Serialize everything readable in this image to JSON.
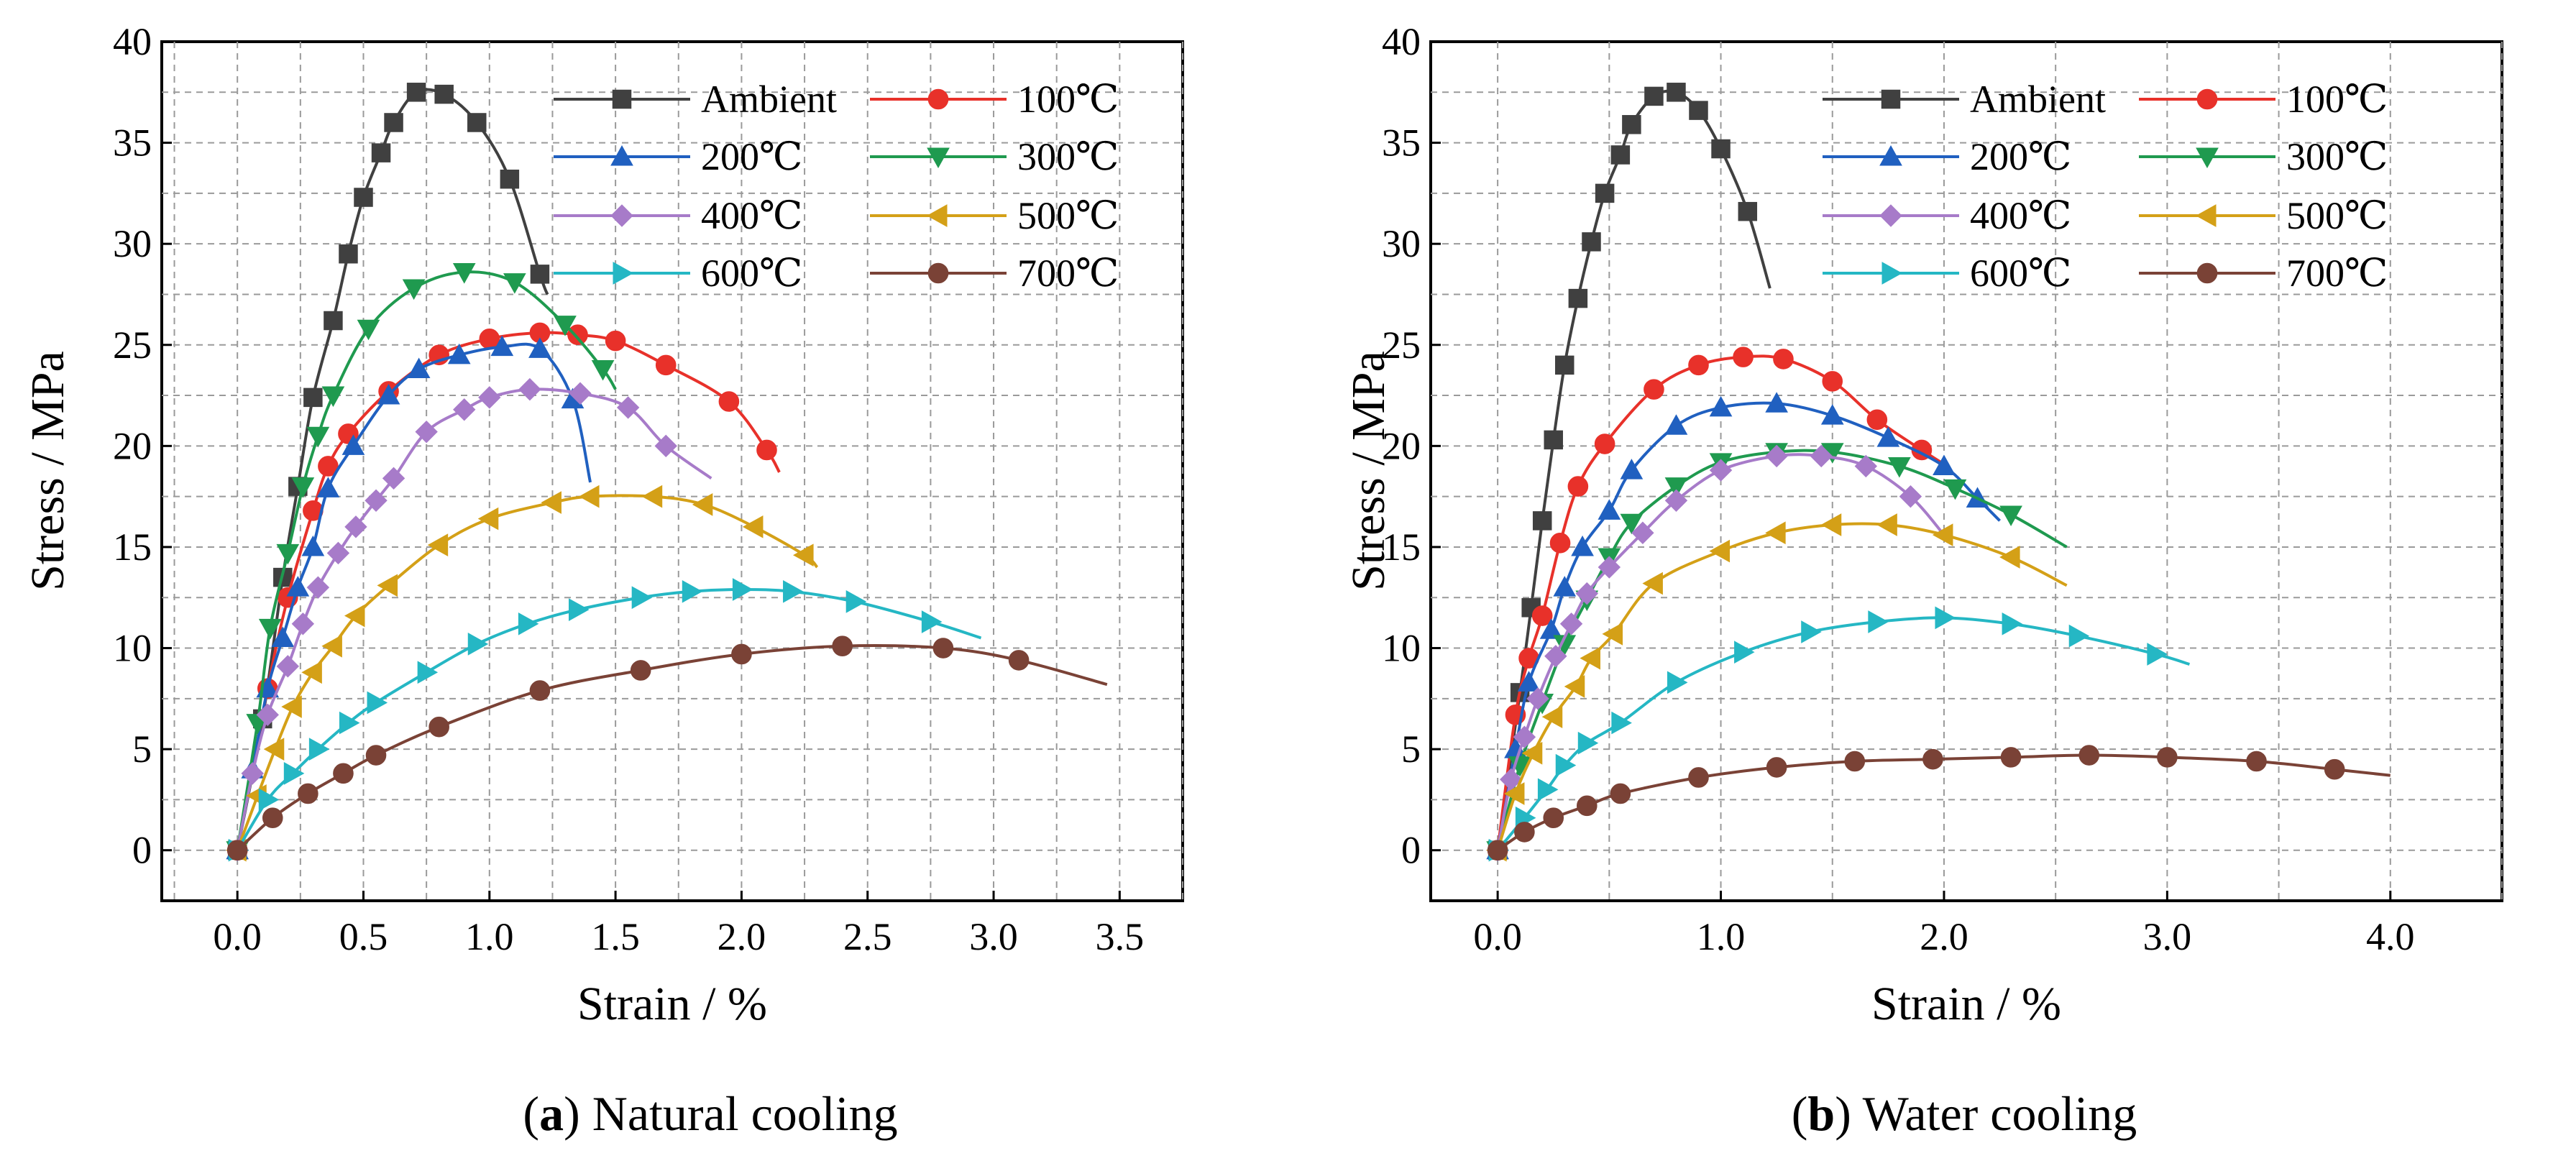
{
  "colors": {
    "Ambient": "#404040",
    "100℃": "#e8312a",
    "200℃": "#2060c0",
    "300℃": "#1f9a4f",
    "400℃": "#a77bc9",
    "500℃": "#d4a017",
    "600℃": "#25b7c4",
    "700℃": "#7a4236"
  },
  "markers": {
    "Ambient": "square",
    "100℃": "circle",
    "200℃": "triangle-up",
    "300℃": "triangle-down",
    "400℃": "diamond",
    "500℃": "triangle-left",
    "600℃": "triangle-right",
    "700℃": "circle"
  },
  "chart_data": [
    {
      "type": "line",
      "caption_letter": "a",
      "caption_text": "Natural cooling",
      "xlabel": "Strain / %",
      "ylabel": "Stress / MPa",
      "xlim": [
        -0.3,
        3.75
      ],
      "ylim": [
        -2.5,
        40
      ],
      "xticks": [
        "0.0",
        "0.5",
        "1.0",
        "1.5",
        "2.0",
        "2.5",
        "3.0",
        "3.5"
      ],
      "yticks": [
        "0",
        "5",
        "10",
        "15",
        "20",
        "25",
        "30",
        "35",
        "40"
      ],
      "legend_position": "top-right",
      "series": [
        {
          "name": "Ambient",
          "points": [
            [
              0,
              0
            ],
            [
              0.1,
              6.5
            ],
            [
              0.18,
              13.5
            ],
            [
              0.24,
              18
            ],
            [
              0.3,
              22.4
            ],
            [
              0.38,
              26.2
            ],
            [
              0.44,
              29.5
            ],
            [
              0.5,
              32.3
            ],
            [
              0.57,
              34.5
            ],
            [
              0.62,
              36
            ],
            [
              0.71,
              37.5
            ],
            [
              0.82,
              37.4
            ],
            [
              0.95,
              36
            ],
            [
              1.08,
              33.2
            ],
            [
              1.2,
              28.5
            ],
            [
              1.23,
              27.5
            ]
          ]
        },
        {
          "name": "100℃",
          "points": [
            [
              0,
              0
            ],
            [
              0.12,
              8
            ],
            [
              0.2,
              12.5
            ],
            [
              0.3,
              16.8
            ],
            [
              0.36,
              19
            ],
            [
              0.44,
              20.6
            ],
            [
              0.6,
              22.7
            ],
            [
              0.8,
              24.5
            ],
            [
              1.0,
              25.3
            ],
            [
              1.2,
              25.6
            ],
            [
              1.35,
              25.5
            ],
            [
              1.5,
              25.2
            ],
            [
              1.7,
              24
            ],
            [
              1.95,
              22.2
            ],
            [
              2.1,
              19.8
            ],
            [
              2.15,
              18.7
            ]
          ]
        },
        {
          "name": "200℃",
          "points": [
            [
              0,
              0
            ],
            [
              0.06,
              4
            ],
            [
              0.12,
              8
            ],
            [
              0.18,
              10.5
            ],
            [
              0.24,
              13
            ],
            [
              0.3,
              15
            ],
            [
              0.36,
              17.9
            ],
            [
              0.46,
              20
            ],
            [
              0.6,
              22.5
            ],
            [
              0.72,
              23.8
            ],
            [
              0.88,
              24.5
            ],
            [
              1.05,
              24.9
            ],
            [
              1.2,
              24.8
            ],
            [
              1.33,
              22.3
            ],
            [
              1.4,
              18.2
            ]
          ]
        },
        {
          "name": "300℃",
          "points": [
            [
              0,
              0
            ],
            [
              0.08,
              6.3
            ],
            [
              0.13,
              11
            ],
            [
              0.2,
              14.7
            ],
            [
              0.26,
              18
            ],
            [
              0.32,
              20.5
            ],
            [
              0.38,
              22.5
            ],
            [
              0.52,
              25.8
            ],
            [
              0.7,
              27.8
            ],
            [
              0.9,
              28.6
            ],
            [
              1.1,
              28.1
            ],
            [
              1.3,
              26
            ],
            [
              1.45,
              23.8
            ],
            [
              1.5,
              22.8
            ]
          ]
        },
        {
          "name": "400℃",
          "points": [
            [
              0,
              0
            ],
            [
              0.06,
              3.8
            ],
            [
              0.12,
              6.7
            ],
            [
              0.2,
              9.1
            ],
            [
              0.26,
              11.2
            ],
            [
              0.32,
              13
            ],
            [
              0.4,
              14.7
            ],
            [
              0.47,
              16
            ],
            [
              0.55,
              17.3
            ],
            [
              0.62,
              18.4
            ],
            [
              0.75,
              20.7
            ],
            [
              0.9,
              21.8
            ],
            [
              1.0,
              22.4
            ],
            [
              1.16,
              22.8
            ],
            [
              1.36,
              22.6
            ],
            [
              1.55,
              21.9
            ],
            [
              1.7,
              20
            ],
            [
              1.88,
              18.4
            ]
          ]
        },
        {
          "name": "500℃",
          "points": [
            [
              0,
              0
            ],
            [
              0.08,
              2.7
            ],
            [
              0.15,
              5
            ],
            [
              0.22,
              7.1
            ],
            [
              0.3,
              8.8
            ],
            [
              0.38,
              10.1
            ],
            [
              0.47,
              11.6
            ],
            [
              0.6,
              13.1
            ],
            [
              0.8,
              15.1
            ],
            [
              1.0,
              16.4
            ],
            [
              1.25,
              17.2
            ],
            [
              1.4,
              17.5
            ],
            [
              1.65,
              17.5
            ],
            [
              1.85,
              17.1
            ],
            [
              2.05,
              16
            ],
            [
              2.25,
              14.6
            ],
            [
              2.3,
              14
            ]
          ]
        },
        {
          "name": "600℃",
          "points": [
            [
              0,
              0
            ],
            [
              0.12,
              2.5
            ],
            [
              0.22,
              3.8
            ],
            [
              0.32,
              5
            ],
            [
              0.44,
              6.3
            ],
            [
              0.55,
              7.3
            ],
            [
              0.75,
              8.8
            ],
            [
              0.95,
              10.2
            ],
            [
              1.15,
              11.2
            ],
            [
              1.35,
              11.9
            ],
            [
              1.6,
              12.5
            ],
            [
              1.8,
              12.8
            ],
            [
              2.0,
              12.9
            ],
            [
              2.2,
              12.8
            ],
            [
              2.45,
              12.3
            ],
            [
              2.75,
              11.3
            ],
            [
              2.95,
              10.5
            ]
          ]
        },
        {
          "name": "700℃",
          "points": [
            [
              0,
              0
            ],
            [
              0.14,
              1.6
            ],
            [
              0.28,
              2.8
            ],
            [
              0.42,
              3.8
            ],
            [
              0.55,
              4.7
            ],
            [
              0.8,
              6.1
            ],
            [
              1.2,
              7.9
            ],
            [
              1.6,
              8.9
            ],
            [
              2.0,
              9.7
            ],
            [
              2.4,
              10.1
            ],
            [
              2.8,
              10
            ],
            [
              3.1,
              9.4
            ],
            [
              3.45,
              8.2
            ]
          ]
        }
      ]
    },
    {
      "type": "line",
      "caption_letter": "b",
      "caption_text": "Water cooling",
      "xlabel": "Strain / %",
      "ylabel": "Stress / MPa",
      "xlim": [
        -0.3,
        4.5
      ],
      "ylim": [
        -2.5,
        40
      ],
      "xticks": [
        "0.0",
        "1.0",
        "2.0",
        "3.0",
        "4.0"
      ],
      "yticks": [
        "0",
        "5",
        "10",
        "15",
        "20",
        "25",
        "30",
        "35",
        "40"
      ],
      "legend_position": "top-right",
      "series": [
        {
          "name": "Ambient",
          "points": [
            [
              0,
              0
            ],
            [
              0.1,
              7.8
            ],
            [
              0.15,
              12
            ],
            [
              0.2,
              16.3
            ],
            [
              0.25,
              20.3
            ],
            [
              0.3,
              24
            ],
            [
              0.36,
              27.3
            ],
            [
              0.42,
              30.1
            ],
            [
              0.48,
              32.5
            ],
            [
              0.55,
              34.4
            ],
            [
              0.6,
              35.9
            ],
            [
              0.7,
              37.3
            ],
            [
              0.8,
              37.5
            ],
            [
              0.9,
              36.6
            ],
            [
              1.0,
              34.7
            ],
            [
              1.12,
              31.6
            ],
            [
              1.22,
              27.8
            ]
          ]
        },
        {
          "name": "100℃",
          "points": [
            [
              0,
              0
            ],
            [
              0.08,
              6.7
            ],
            [
              0.14,
              9.5
            ],
            [
              0.2,
              11.6
            ],
            [
              0.28,
              15.2
            ],
            [
              0.36,
              18
            ],
            [
              0.48,
              20.1
            ],
            [
              0.7,
              22.8
            ],
            [
              0.9,
              24
            ],
            [
              1.1,
              24.4
            ],
            [
              1.28,
              24.3
            ],
            [
              1.5,
              23.2
            ],
            [
              1.7,
              21.3
            ],
            [
              1.9,
              19.8
            ],
            [
              2.0,
              19.1
            ]
          ]
        },
        {
          "name": "200℃",
          "points": [
            [
              0,
              0
            ],
            [
              0.08,
              5
            ],
            [
              0.14,
              8.3
            ],
            [
              0.24,
              10.9
            ],
            [
              0.3,
              13
            ],
            [
              0.38,
              15
            ],
            [
              0.5,
              16.8
            ],
            [
              0.6,
              18.8
            ],
            [
              0.8,
              21
            ],
            [
              1.0,
              21.9
            ],
            [
              1.25,
              22.1
            ],
            [
              1.5,
              21.5
            ],
            [
              1.75,
              20.4
            ],
            [
              2.0,
              19
            ],
            [
              2.15,
              17.4
            ],
            [
              2.25,
              16.3
            ]
          ]
        },
        {
          "name": "300℃",
          "points": [
            [
              0,
              0
            ],
            [
              0.1,
              4.2
            ],
            [
              0.2,
              7.3
            ],
            [
              0.3,
              10.2
            ],
            [
              0.4,
              12.4
            ],
            [
              0.5,
              14.5
            ],
            [
              0.6,
              16.2
            ],
            [
              0.8,
              18
            ],
            [
              1.0,
              19.2
            ],
            [
              1.25,
              19.7
            ],
            [
              1.5,
              19.7
            ],
            [
              1.8,
              19
            ],
            [
              2.05,
              17.9
            ],
            [
              2.3,
              16.6
            ],
            [
              2.55,
              15
            ]
          ]
        },
        {
          "name": "400℃",
          "points": [
            [
              0,
              0
            ],
            [
              0.06,
              3.5
            ],
            [
              0.12,
              5.6
            ],
            [
              0.18,
              7.5
            ],
            [
              0.26,
              9.6
            ],
            [
              0.33,
              11.2
            ],
            [
              0.4,
              12.7
            ],
            [
              0.5,
              14
            ],
            [
              0.65,
              15.7
            ],
            [
              0.8,
              17.3
            ],
            [
              1.0,
              18.8
            ],
            [
              1.25,
              19.5
            ],
            [
              1.45,
              19.5
            ],
            [
              1.65,
              19
            ],
            [
              1.85,
              17.5
            ],
            [
              2.0,
              15.6
            ]
          ]
        },
        {
          "name": "500℃",
          "points": [
            [
              0,
              0
            ],
            [
              0.08,
              2.8
            ],
            [
              0.16,
              4.8
            ],
            [
              0.25,
              6.6
            ],
            [
              0.35,
              8.1
            ],
            [
              0.42,
              9.5
            ],
            [
              0.52,
              10.7
            ],
            [
              0.7,
              13.2
            ],
            [
              1.0,
              14.8
            ],
            [
              1.25,
              15.7
            ],
            [
              1.5,
              16.1
            ],
            [
              1.75,
              16.1
            ],
            [
              2.0,
              15.6
            ],
            [
              2.3,
              14.5
            ],
            [
              2.55,
              13.1
            ]
          ]
        },
        {
          "name": "600℃",
          "points": [
            [
              0,
              0
            ],
            [
              0.12,
              1.6
            ],
            [
              0.22,
              3
            ],
            [
              0.3,
              4.2
            ],
            [
              0.4,
              5.3
            ],
            [
              0.55,
              6.3
            ],
            [
              0.8,
              8.3
            ],
            [
              1.1,
              9.8
            ],
            [
              1.4,
              10.8
            ],
            [
              1.7,
              11.3
            ],
            [
              2.0,
              11.5
            ],
            [
              2.3,
              11.2
            ],
            [
              2.6,
              10.6
            ],
            [
              2.95,
              9.7
            ],
            [
              3.1,
              9.2
            ]
          ]
        },
        {
          "name": "700℃",
          "points": [
            [
              0,
              0
            ],
            [
              0.12,
              0.9
            ],
            [
              0.25,
              1.6
            ],
            [
              0.4,
              2.2
            ],
            [
              0.55,
              2.8
            ],
            [
              0.9,
              3.6
            ],
            [
              1.25,
              4.1
            ],
            [
              1.6,
              4.4
            ],
            [
              1.95,
              4.5
            ],
            [
              2.3,
              4.6
            ],
            [
              2.65,
              4.7
            ],
            [
              3.0,
              4.6
            ],
            [
              3.4,
              4.4
            ],
            [
              3.75,
              4
            ],
            [
              4.0,
              3.7
            ]
          ]
        }
      ]
    }
  ]
}
